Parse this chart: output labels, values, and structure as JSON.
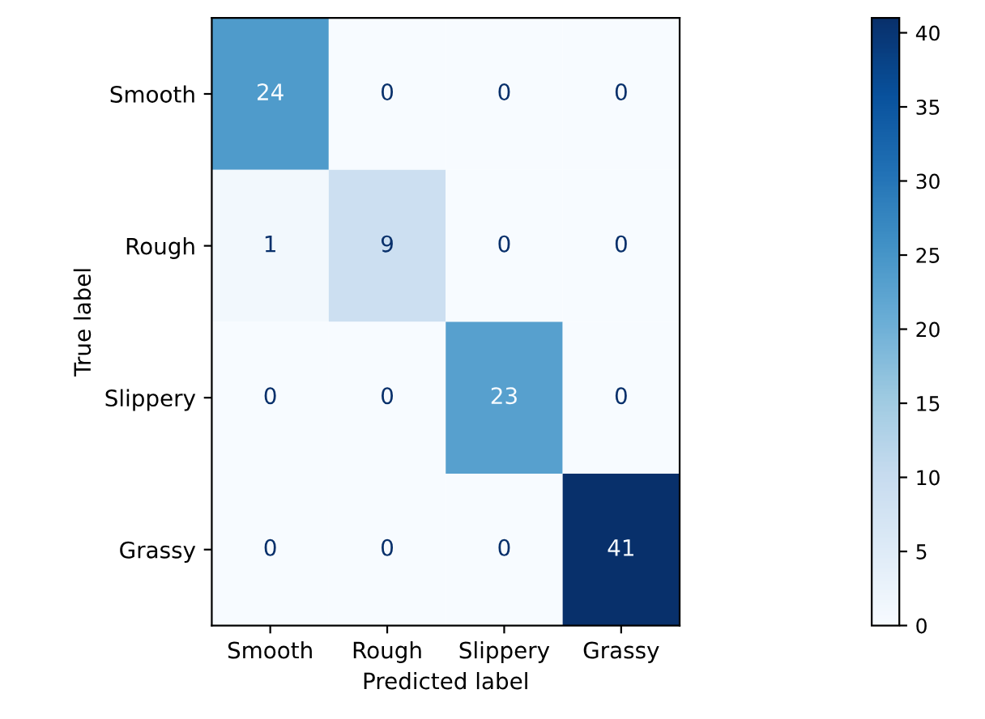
{
  "chart_data": {
    "type": "heatmap",
    "xlabel": "Predicted label",
    "ylabel": "True label",
    "categories": [
      "Smooth",
      "Rough",
      "Slippery",
      "Grassy"
    ],
    "y_categories": [
      "Smooth",
      "Rough",
      "Slippery",
      "Grassy"
    ],
    "cells": [
      [
        24,
        0,
        0,
        0
      ],
      [
        1,
        9,
        0,
        0
      ],
      [
        0,
        0,
        23,
        0
      ],
      [
        0,
        0,
        0,
        41
      ]
    ],
    "data_labels": true,
    "clim": [
      0,
      41
    ],
    "cticks": [
      0,
      5,
      10,
      15,
      20,
      25,
      30,
      35,
      40
    ]
  }
}
